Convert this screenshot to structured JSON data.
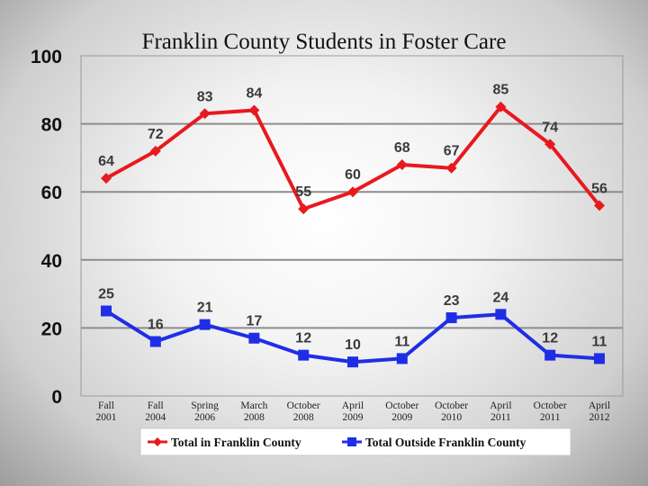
{
  "chart_data": {
    "type": "line",
    "title": "Franklin County Students in Foster Care",
    "xlabel": "",
    "ylabel": "",
    "ylim": [
      0,
      100
    ],
    "yticks": [
      0,
      20,
      40,
      60,
      80,
      100
    ],
    "grid": true,
    "legend_position": "bottom",
    "categories": [
      [
        "Fall",
        "2001"
      ],
      [
        "Fall",
        "2004"
      ],
      [
        "Spring",
        "2006"
      ],
      [
        "March",
        "2008"
      ],
      [
        "October",
        "2008"
      ],
      [
        "April",
        "2009"
      ],
      [
        "October",
        "2009"
      ],
      [
        "October",
        "2010"
      ],
      [
        "April",
        "2011"
      ],
      [
        "October",
        "2011"
      ],
      [
        "April",
        "2012"
      ]
    ],
    "series": [
      {
        "name": "Total in Franklin County",
        "color": "#e8191f",
        "marker": "diamond",
        "values": [
          64,
          72,
          83,
          84,
          55,
          60,
          68,
          67,
          85,
          74,
          56
        ]
      },
      {
        "name": "Total Outside Franklin County",
        "color": "#1f2ee6",
        "marker": "square",
        "values": [
          25,
          16,
          21,
          17,
          12,
          10,
          11,
          23,
          24,
          12,
          11
        ]
      }
    ]
  }
}
